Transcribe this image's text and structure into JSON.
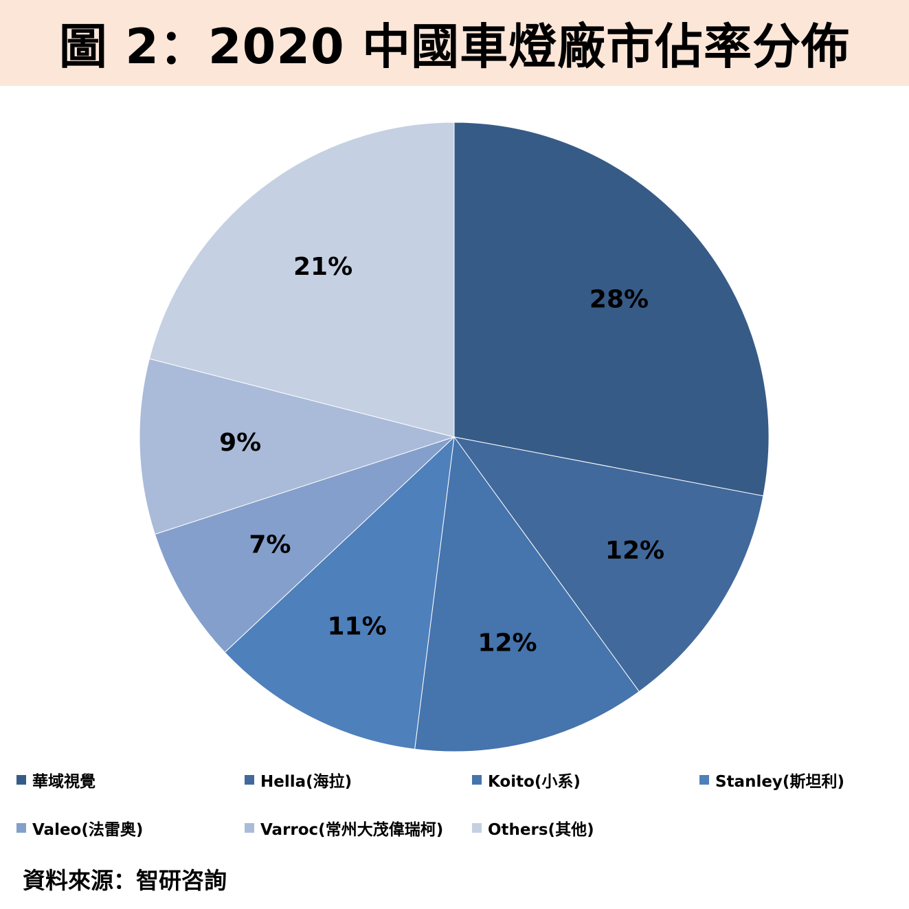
{
  "chart_data": {
    "type": "pie",
    "title": "圖 2：2020 中國車燈廠市佔率分佈",
    "categories": [
      "華域視覺",
      "Hella(海拉)",
      "Koito(小系)",
      "Stanley(斯坦利)",
      "Valeo(法雷奥)",
      "Varroc(常州大茂偉瑞柯)",
      "Others(其他)"
    ],
    "values": [
      28,
      12,
      12,
      11,
      7,
      9,
      21
    ],
    "labels": [
      "28%",
      "12%",
      "12%",
      "11%",
      "7%",
      "9%",
      "21%"
    ],
    "colors": [
      "#375b87",
      "#41699c",
      "#4674ac",
      "#4e80bb",
      "#849fcb",
      "#aabbd9",
      "#c5d0e2"
    ],
    "legend_position": "bottom",
    "start_angle": "12 o'clock",
    "direction": "clockwise"
  },
  "source": "資料來源：智研咨詢"
}
